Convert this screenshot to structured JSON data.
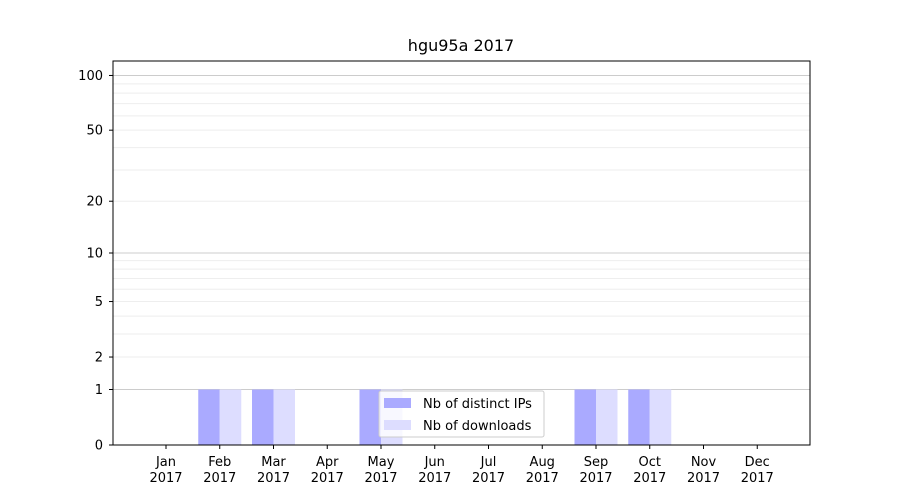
{
  "chart_data": {
    "type": "bar",
    "title": "hgu95a 2017",
    "categories": [
      "Jan\n2017",
      "Feb\n2017",
      "Mar\n2017",
      "Apr\n2017",
      "May\n2017",
      "Jun\n2017",
      "Jul\n2017",
      "Aug\n2017",
      "Sep\n2017",
      "Oct\n2017",
      "Nov\n2017",
      "Dec\n2017"
    ],
    "series": [
      {
        "name": "Nb of distinct IPs",
        "color": "#aaaaff",
        "values": [
          0,
          1,
          1,
          0,
          1,
          0,
          0,
          0,
          1,
          1,
          0,
          0
        ]
      },
      {
        "name": "Nb of downloads",
        "color": "#ddddff",
        "values": [
          0,
          1,
          1,
          0,
          1,
          0,
          0,
          0,
          1,
          1,
          0,
          0
        ]
      }
    ],
    "yscale": "log1p",
    "ylim": [
      0,
      120
    ],
    "yticks": [
      0,
      1,
      2,
      5,
      10,
      20,
      50,
      100
    ],
    "ytick_labels": [
      "0",
      "1",
      "2",
      "5",
      "10",
      "20",
      "50",
      "100"
    ],
    "grid": true,
    "legend": "bottom-center"
  }
}
